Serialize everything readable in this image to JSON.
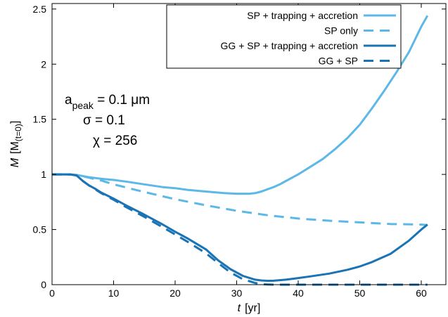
{
  "chart_data": {
    "type": "line",
    "xlabel": "t",
    "xlabel_unit": "[yr]",
    "ylabel": "M",
    "ylabel_unit_main": "[M",
    "ylabel_unit_sub": "(t=0)",
    "ylabel_unit_close": "]",
    "xlim": [
      0,
      64
    ],
    "ylim": [
      0,
      2.55
    ],
    "xticks": [
      0,
      10,
      20,
      30,
      40,
      50,
      60
    ],
    "yticks": [
      0,
      0.5,
      1,
      1.5,
      2,
      2.5
    ],
    "ytick_labels": [
      "0",
      "0.5",
      "1",
      "1.5",
      "2",
      "2.5"
    ],
    "grid": false,
    "legend_position": "top-right",
    "colors": {
      "light": "#5cb8e6",
      "dark": "#1a73b4"
    },
    "annotations": {
      "a_main": "a",
      "a_sub": "peak",
      "a_value": " = 0.1 μm",
      "sigma": "σ = 0.1",
      "chi": "χ = 256"
    },
    "series": [
      {
        "name": "SP + trapping + accretion",
        "color": "#5cb8e6",
        "dash": "solid",
        "x": [
          0,
          2,
          4,
          6,
          8,
          10,
          12,
          15,
          18,
          20,
          22,
          25,
          28,
          30,
          32,
          33,
          34,
          35,
          36,
          37,
          38,
          40,
          42,
          44,
          46,
          48,
          50,
          52,
          54,
          56,
          58,
          60,
          61
        ],
        "y": [
          1.0,
          1.0,
          0.995,
          0.975,
          0.96,
          0.95,
          0.935,
          0.91,
          0.885,
          0.875,
          0.86,
          0.845,
          0.83,
          0.825,
          0.825,
          0.83,
          0.845,
          0.865,
          0.885,
          0.91,
          0.94,
          1.0,
          1.07,
          1.14,
          1.23,
          1.33,
          1.45,
          1.6,
          1.76,
          1.93,
          2.11,
          2.34,
          2.44
        ]
      },
      {
        "name": "SP only",
        "color": "#5cb8e6",
        "dash": "dashed",
        "x": [
          0,
          2,
          4,
          6,
          8,
          10,
          15,
          20,
          25,
          30,
          35,
          40,
          45,
          50,
          55,
          60,
          61
        ],
        "y": [
          1.0,
          1.0,
          0.995,
          0.97,
          0.945,
          0.91,
          0.84,
          0.775,
          0.72,
          0.67,
          0.63,
          0.6,
          0.58,
          0.565,
          0.55,
          0.545,
          0.54
        ]
      },
      {
        "name": "GG + SP + trapping + accretion",
        "color": "#1a73b4",
        "dash": "solid",
        "x": [
          0,
          2,
          3,
          4,
          5,
          6,
          7,
          8,
          10,
          12,
          15,
          18,
          20,
          22,
          25,
          27,
          29,
          31,
          33,
          34,
          35,
          36,
          38,
          40,
          42,
          45,
          48,
          50,
          52,
          55,
          58,
          60,
          61
        ],
        "y": [
          1.0,
          1.0,
          1.0,
          0.99,
          0.94,
          0.9,
          0.87,
          0.835,
          0.78,
          0.72,
          0.635,
          0.545,
          0.48,
          0.42,
          0.32,
          0.22,
          0.14,
          0.08,
          0.045,
          0.038,
          0.035,
          0.036,
          0.045,
          0.06,
          0.075,
          0.1,
          0.135,
          0.165,
          0.205,
          0.28,
          0.4,
          0.5,
          0.545
        ]
      },
      {
        "name": "GG + SP",
        "color": "#1a73b4",
        "dash": "dashed",
        "x": [
          0,
          2,
          3,
          4,
          5,
          6,
          7,
          8,
          10,
          12,
          15,
          18,
          20,
          22,
          25,
          27,
          29,
          31,
          33,
          34,
          35,
          36,
          38,
          40,
          45,
          50,
          55,
          60,
          61
        ],
        "y": [
          1.0,
          1.0,
          1.0,
          0.99,
          0.94,
          0.9,
          0.865,
          0.83,
          0.77,
          0.705,
          0.615,
          0.52,
          0.455,
          0.39,
          0.285,
          0.195,
          0.11,
          0.05,
          0.015,
          0.006,
          0.002,
          0.0,
          0.0,
          0.0,
          0.0,
          0.0,
          0.0,
          0.0,
          0.0
        ]
      }
    ]
  }
}
